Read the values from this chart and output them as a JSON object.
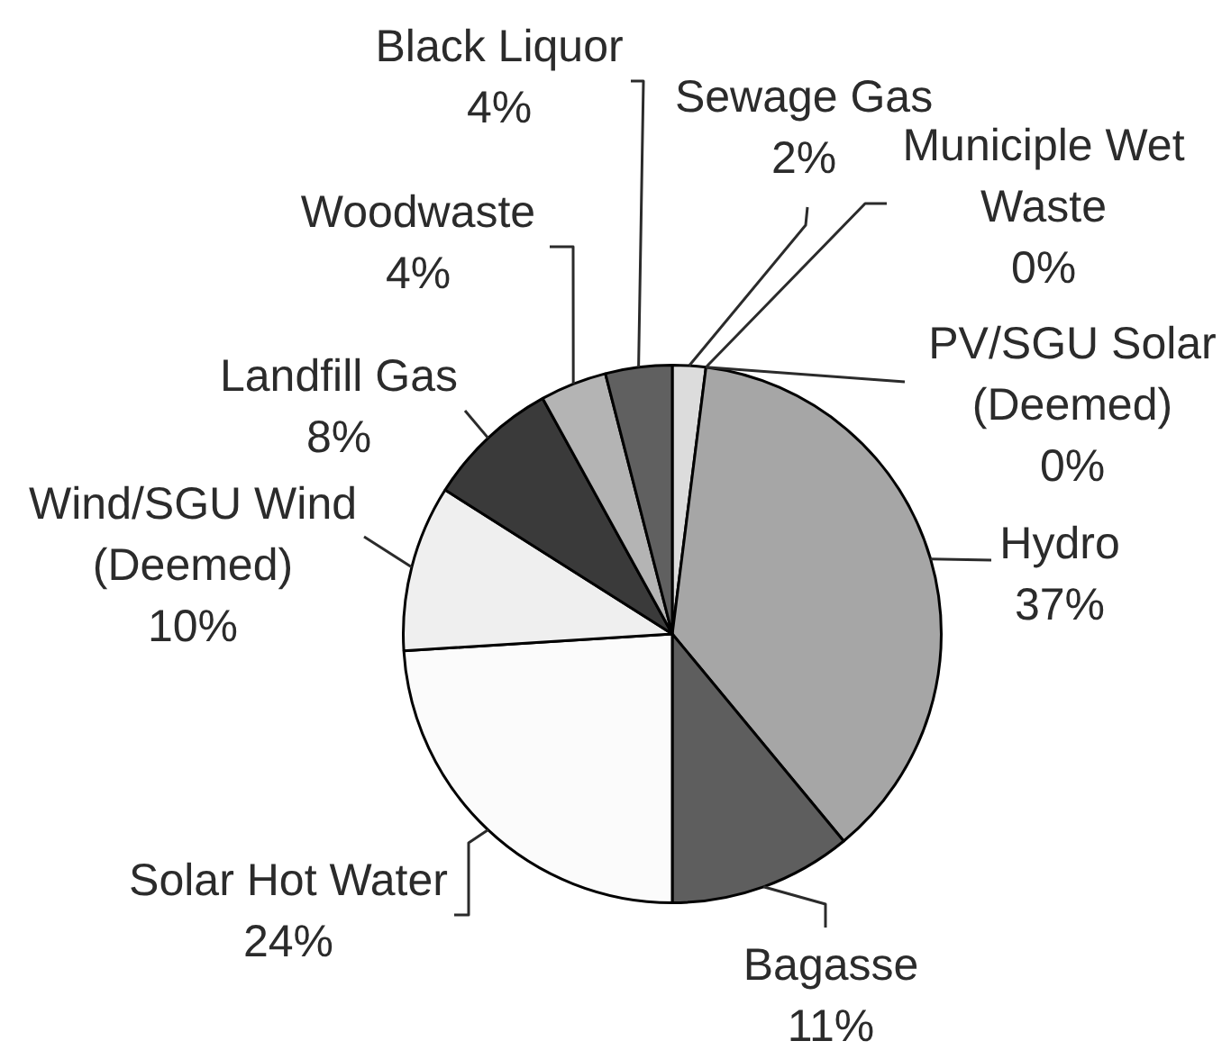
{
  "chart_data": {
    "type": "pie",
    "categories": [
      "Sewage Gas",
      "Municiple Wet Waste",
      "PV/SGU Solar (Deemed)",
      "Hydro",
      "Bagasse",
      "Solar Hot Water",
      "Wind/SGU Wind (Deemed)",
      "Landfill Gas",
      "Woodwaste",
      "Black Liquor"
    ],
    "values": [
      2,
      0,
      0,
      37,
      11,
      24,
      10,
      8,
      4,
      4
    ],
    "value_labels": [
      "2%",
      "0%",
      "0%",
      "37%",
      "11%",
      "24%",
      "10%",
      "8%",
      "4%",
      "4%"
    ],
    "colors": [
      "#dcdcdc",
      "#c8c8c8",
      "#8c8c8c",
      "#a6a6a6",
      "#5e5e5e",
      "#fbfbfb",
      "#efefef",
      "#3a3a3a",
      "#b4b4b4",
      "#606060"
    ]
  }
}
